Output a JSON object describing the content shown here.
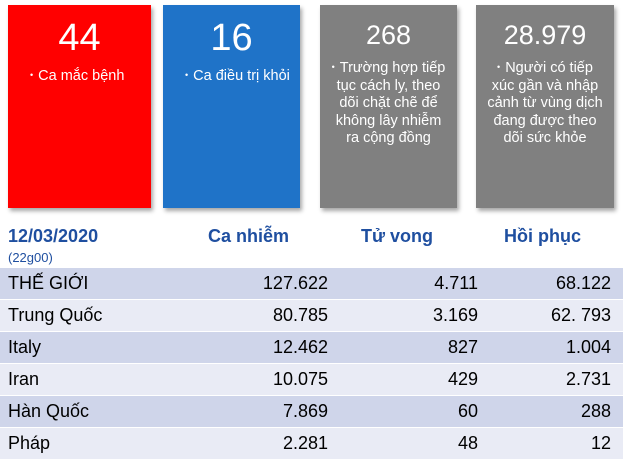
{
  "cards": [
    {
      "number": "44",
      "text": "Ca mắc bệnh",
      "color": "#ff0000"
    },
    {
      "number": "16",
      "text": "Ca điều trị khỏi",
      "color": "#1f73c8"
    },
    {
      "number": "268",
      "text": "Trường hợp tiếp tục cách ly, theo dõi chặt chẽ để không lây nhiễm ra cộng đồng",
      "color": "#808080"
    },
    {
      "number": "28.979",
      "text": "Người có tiếp xúc gần và nhập cảnh từ vùng dịch đang được theo dõi sức khỏe",
      "color": "#808080"
    }
  ],
  "bullet": "•",
  "table": {
    "date": "12/03/2020",
    "time": "(22g00)",
    "headers": [
      "Ca nhiễm",
      "Tử vong",
      "Hồi phục"
    ],
    "rows": [
      [
        "THẾ GIỚI",
        "127.622",
        "4.711",
        "68.122"
      ],
      [
        "Trung Quốc",
        "80.785",
        "3.169",
        "62. 793"
      ],
      [
        "Italy",
        "12.462",
        "827",
        "1.004"
      ],
      [
        "Iran",
        "10.075",
        "429",
        "2.731"
      ],
      [
        "Hàn Quốc",
        "7.869",
        "60",
        "288"
      ],
      [
        "Pháp",
        "2.281",
        "48",
        "12"
      ]
    ]
  }
}
